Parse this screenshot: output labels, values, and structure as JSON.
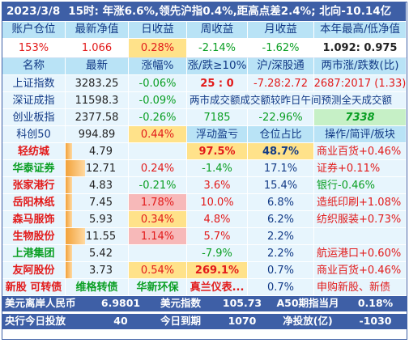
{
  "title_bar": {
    "date": "2023/3/8",
    "summary": "15时: 年涨6.6%,领先沪指0.4%,距高点差2.4%; 北向-10.14亿"
  },
  "account": {
    "headers": [
      "账户仓位",
      "最新净值",
      "日收益",
      "周收益",
      "月收益",
      "本年最高/低净值"
    ],
    "values": [
      "153%",
      "1.066",
      "0.28%",
      "-2.14%",
      "-1.62%",
      "1.092: 0.975"
    ]
  },
  "index_header": [
    "名称",
    "最新",
    "涨幅%",
    "涨/跌≥10%",
    "沪/深股通",
    "两市涨/跌数(比)"
  ],
  "indices": [
    {
      "name": "上证指数",
      "last": "3283.25",
      "change": "-0.06%",
      "col4": "25 : 0",
      "col5": "-7.28:2.72",
      "col6": "2687:2017 (1.33)"
    },
    {
      "name": "深证成指",
      "last": "11598.3",
      "change": "-0.09%",
      "note": "两市成交额成交额较昨日午间预测全天成交额"
    },
    {
      "name": "创业板指",
      "last": "2377.58",
      "change": "-0.26%",
      "col4": "7185",
      "col5": "-22.96%",
      "col6": "7338"
    },
    {
      "name": "科创50",
      "last": "994.89",
      "change": "0.44%"
    }
  ],
  "holdings_header": [
    "浮动盈亏",
    "仓位占比",
    "操作/简评/板块"
  ],
  "holdings": [
    {
      "name": "轻纺城",
      "price": "4.79",
      "change": "",
      "pnl": "97.5%",
      "weight": "48.7%",
      "note": "商业百货+0.46%"
    },
    {
      "name": "华泰证券",
      "price": "12.71",
      "change": "0.24%",
      "pnl": "-1.4%",
      "weight": "17.1%",
      "note": "证券+0.11%"
    },
    {
      "name": "张家港行",
      "price": "4.83",
      "change": "-0.21%",
      "pnl": "3.6%",
      "weight": "15.4%",
      "note": "银行-0.46%"
    },
    {
      "name": "岳阳林纸",
      "price": "7.45",
      "change": "1.78%",
      "pnl": "10.0%",
      "weight": "6.8%",
      "note": "造纸印刷+1.08%"
    },
    {
      "name": "森马服饰",
      "price": "5.93",
      "change": "0.34%",
      "pnl": "4.8%",
      "weight": "6.2%",
      "note": "纺织服装+0.73%"
    },
    {
      "name": "生物股份",
      "price": "11.55",
      "change": "1.14%",
      "pnl": "5.7%",
      "weight": "2.2%",
      "note": ""
    },
    {
      "name": "上港集团",
      "price": "5.42",
      "change": "",
      "pnl": "-7.9%",
      "weight": "2.2%",
      "note": "航运港口+0.60%"
    },
    {
      "name": "友阿股份",
      "price": "3.73",
      "change": "0.54%",
      "pnl": "269.1%",
      "weight": "0.7%",
      "note": "商业百货+0.46%"
    },
    {
      "name": "新股 可转债",
      "price": "维格转债",
      "change": "华新环保",
      "pnl": "真兰仪表...",
      "weight": "0.7%",
      "note": "申购新股、新债"
    }
  ],
  "footer": [
    {
      "l1": "美元离岸人民币",
      "v1": "6.9801",
      "l2": "美元指数",
      "v2": "105.73",
      "l3": "A50期指当月",
      "v3": "0.18%"
    },
    {
      "l1": "央行今日投放",
      "v1": "40",
      "l2": "今日到期",
      "v2": "1070",
      "l3": "净投放(亿)",
      "v3": "-1030"
    }
  ],
  "colors": {
    "header_blue": "#3e5fa6",
    "header_light": "#b9e3f6",
    "up_red": "#e21a1a",
    "down_green": "#0a9f23",
    "row_bg": "#e7f5fd"
  }
}
